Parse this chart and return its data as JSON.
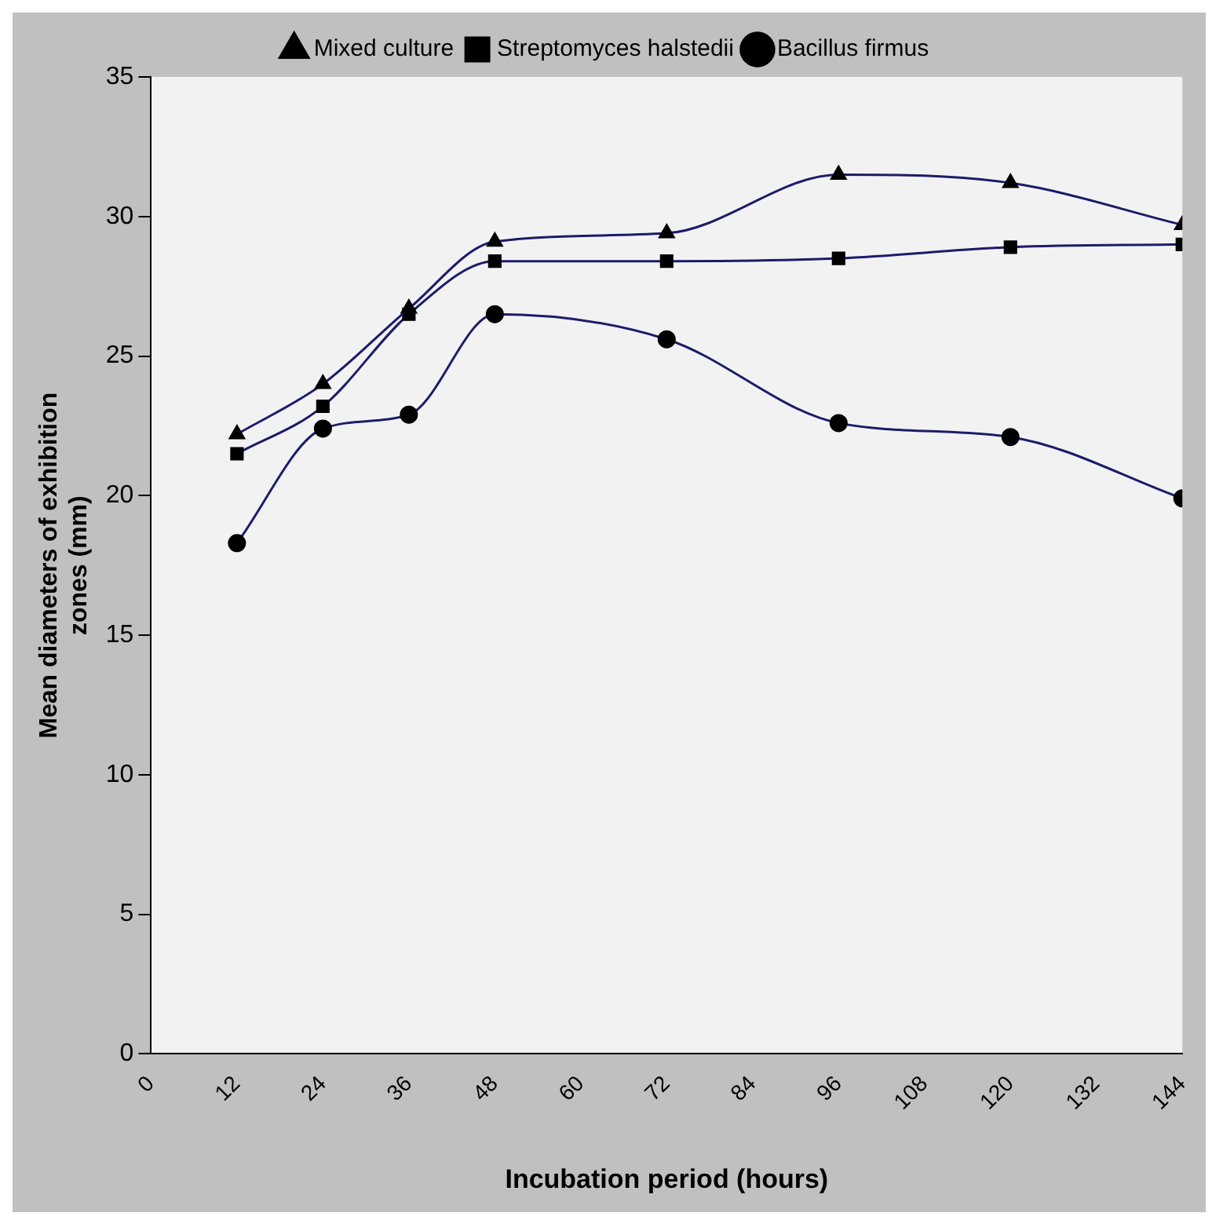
{
  "chart_data": {
    "type": "line",
    "xlabel": "Incubation period (hours)",
    "ylabel": "Mean diameters of exhibition zones (mm)",
    "x": [
      12,
      24,
      36,
      48,
      72,
      96,
      120,
      144
    ],
    "series": [
      {
        "name": "Mixed culture",
        "color": "#1c1c6b",
        "marker": "triangle",
        "values": [
          22.2,
          24,
          26.7,
          29.1,
          29.4,
          31.5,
          31.2,
          29.7
        ]
      },
      {
        "name": "Streptomyces halstedii",
        "color": "#1c1c6b",
        "marker": "square",
        "values": [
          21.5,
          23.2,
          26.5,
          28.4,
          28.4,
          28.5,
          28.9,
          29.0
        ]
      },
      {
        "name": "Bacillus firmus",
        "color": "#1c1c6b",
        "marker": "circle",
        "values": [
          18.3,
          22.4,
          22.9,
          26.5,
          25.6,
          22.6,
          22.1,
          19.9
        ]
      }
    ],
    "xlim": [
      0,
      144
    ],
    "xticks": [
      0,
      12,
      24,
      36,
      48,
      60,
      72,
      84,
      96,
      108,
      120,
      132,
      144
    ],
    "ylim": [
      0,
      35
    ],
    "yticks": [
      0,
      5,
      10,
      15,
      20,
      25,
      30,
      35
    ],
    "grid": false,
    "legend": "top"
  }
}
